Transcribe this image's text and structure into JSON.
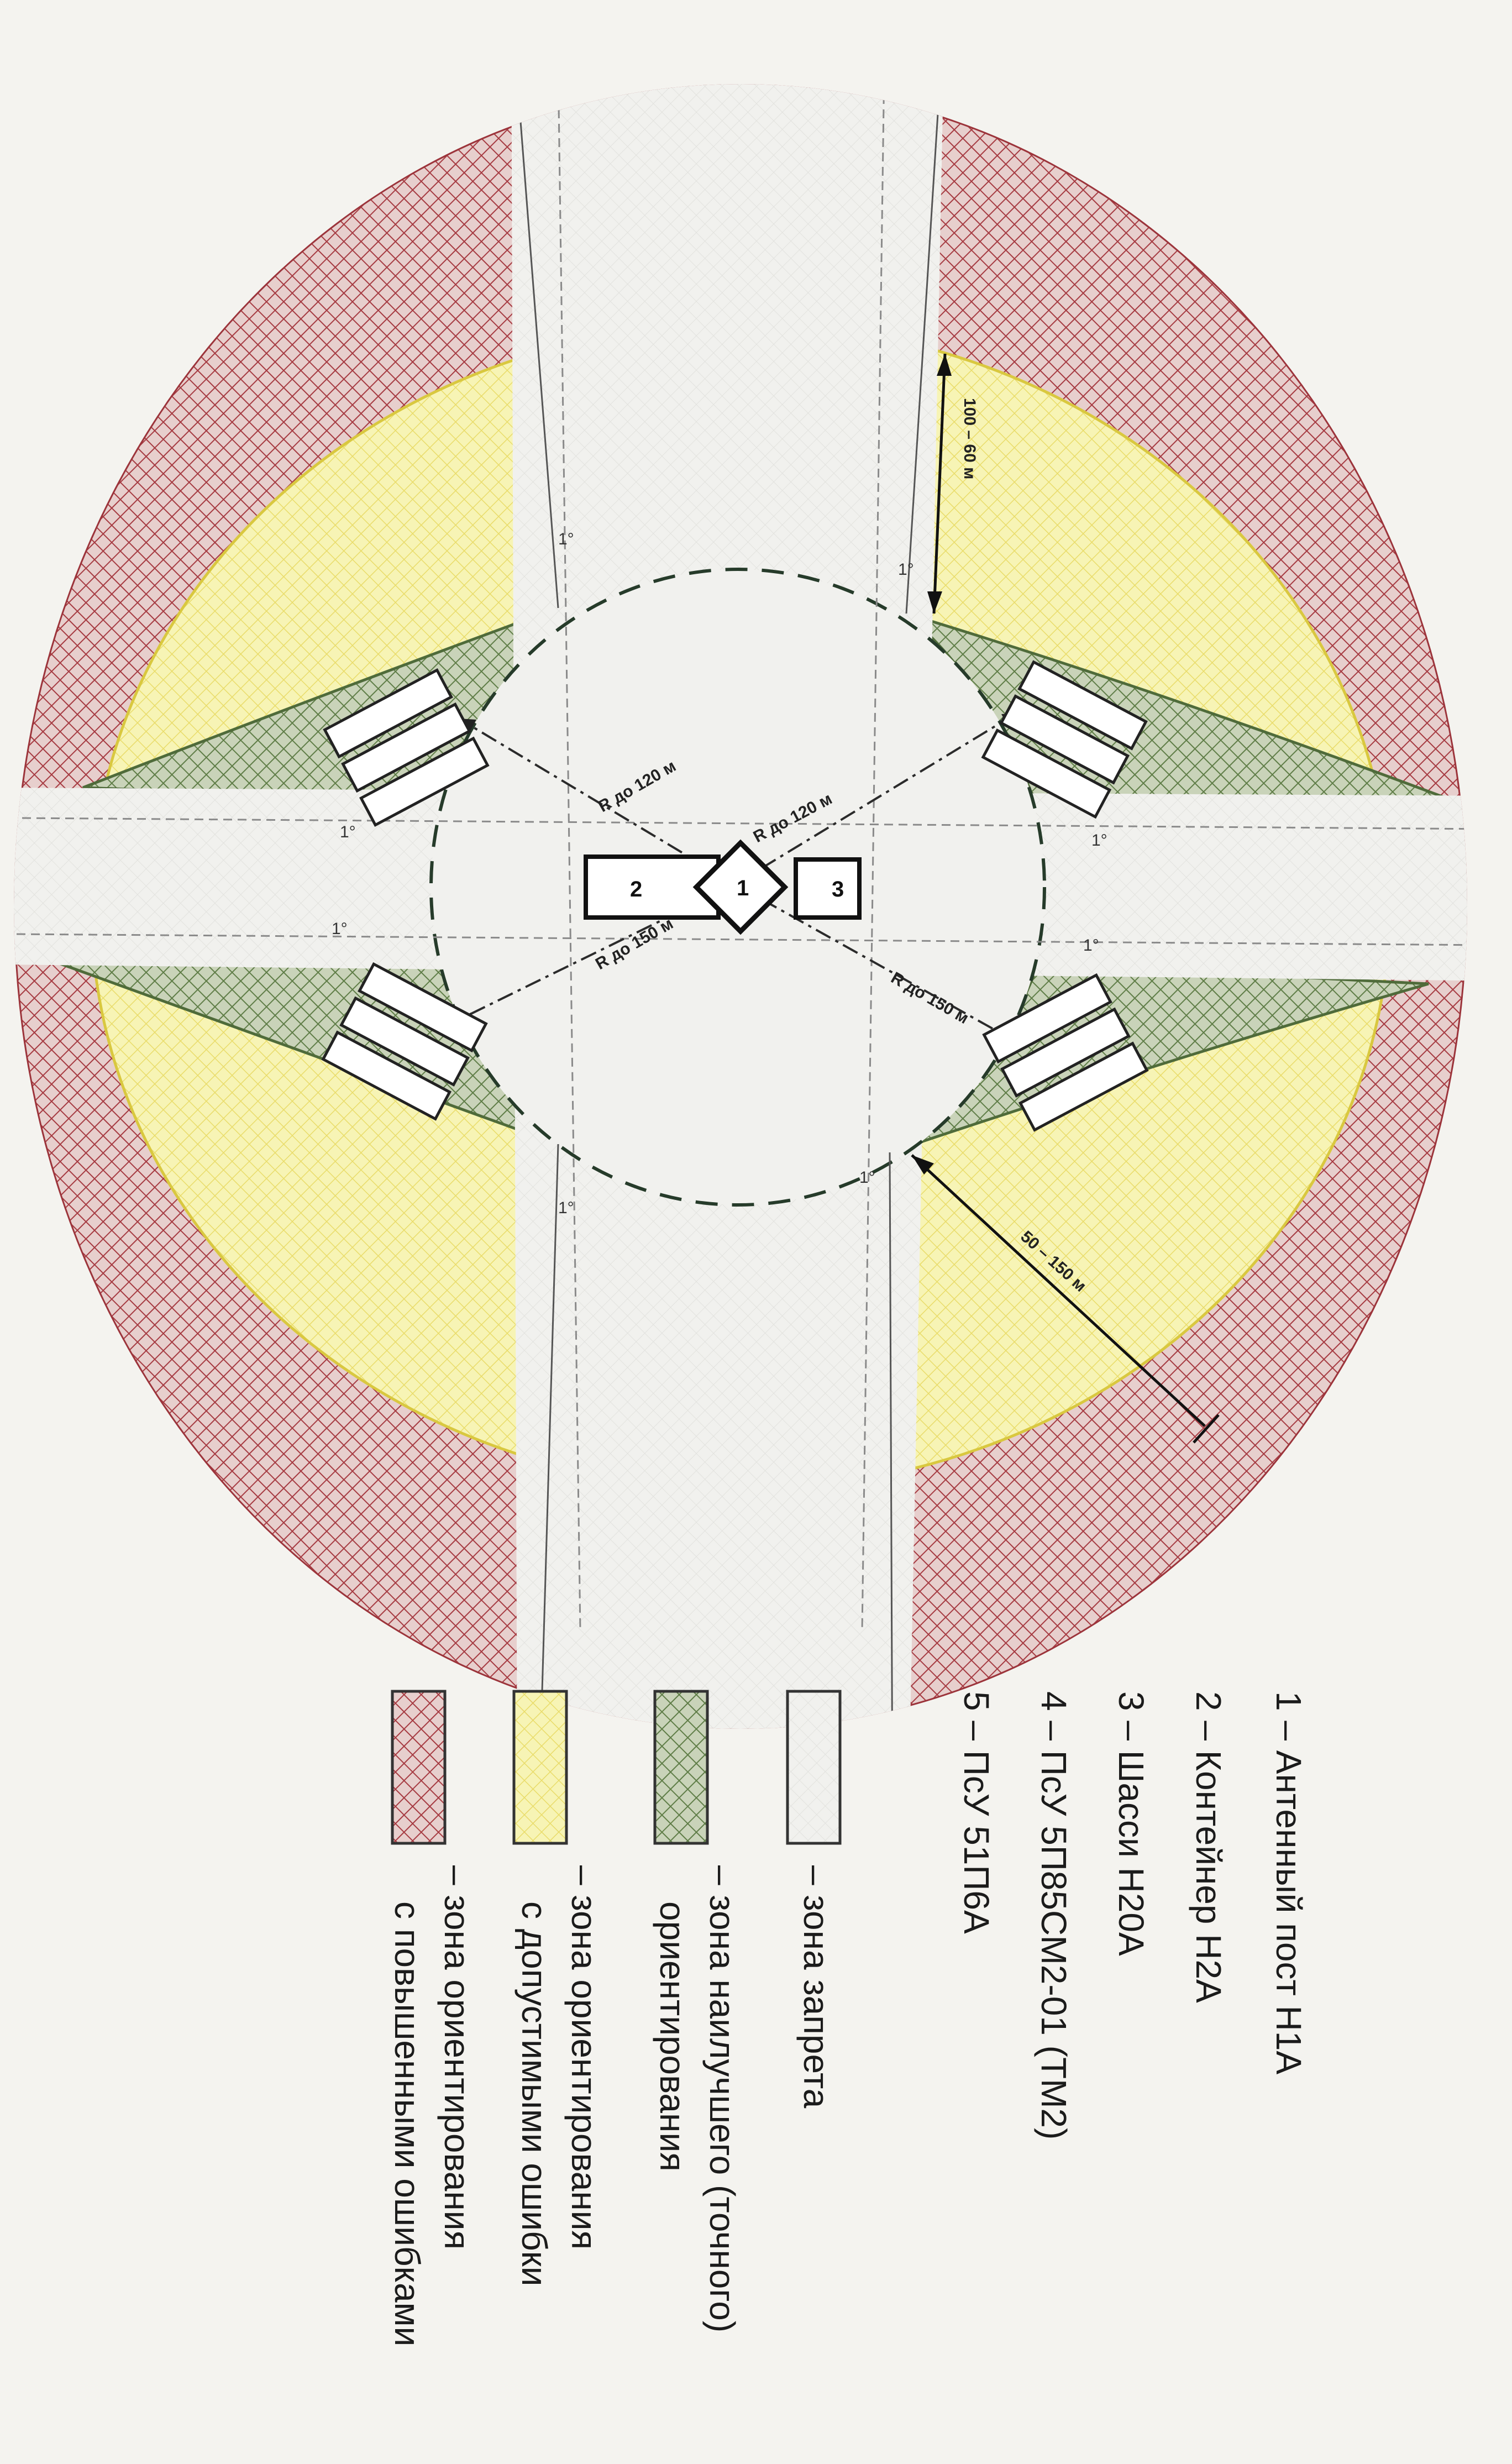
{
  "annotations": {
    "r_top": "R до 120 м",
    "r_bottom": "R до 150 м",
    "dim_upper": "100 – 60 м",
    "dim_lower": "50 – 150 м",
    "angle": "1°"
  },
  "components": [
    {
      "num": "1",
      "label": "– Антенный пост Н1А"
    },
    {
      "num": "2",
      "label": "– Контейнер Н2А"
    },
    {
      "num": "3",
      "label": "– Шасси Н20А"
    },
    {
      "num": "4",
      "label": "– ПсУ 5П85СМ2-01 (ТМ2)"
    },
    {
      "num": "5",
      "label": "– ПсУ 51П6А"
    }
  ],
  "zones": [
    {
      "label": "– зона запрета",
      "line2": "",
      "color": "#eeeeea"
    },
    {
      "label": "– зона наилучшего (точного)",
      "line2": "ориентирования",
      "color": "#7f9a63"
    },
    {
      "label": "– зона ориентирования",
      "line2": "с допустимыми ошибки",
      "color": "#f3ef93"
    },
    {
      "label": "– зона ориентирования",
      "line2": "с повышенными ошибками",
      "color": "#b1595e"
    }
  ]
}
